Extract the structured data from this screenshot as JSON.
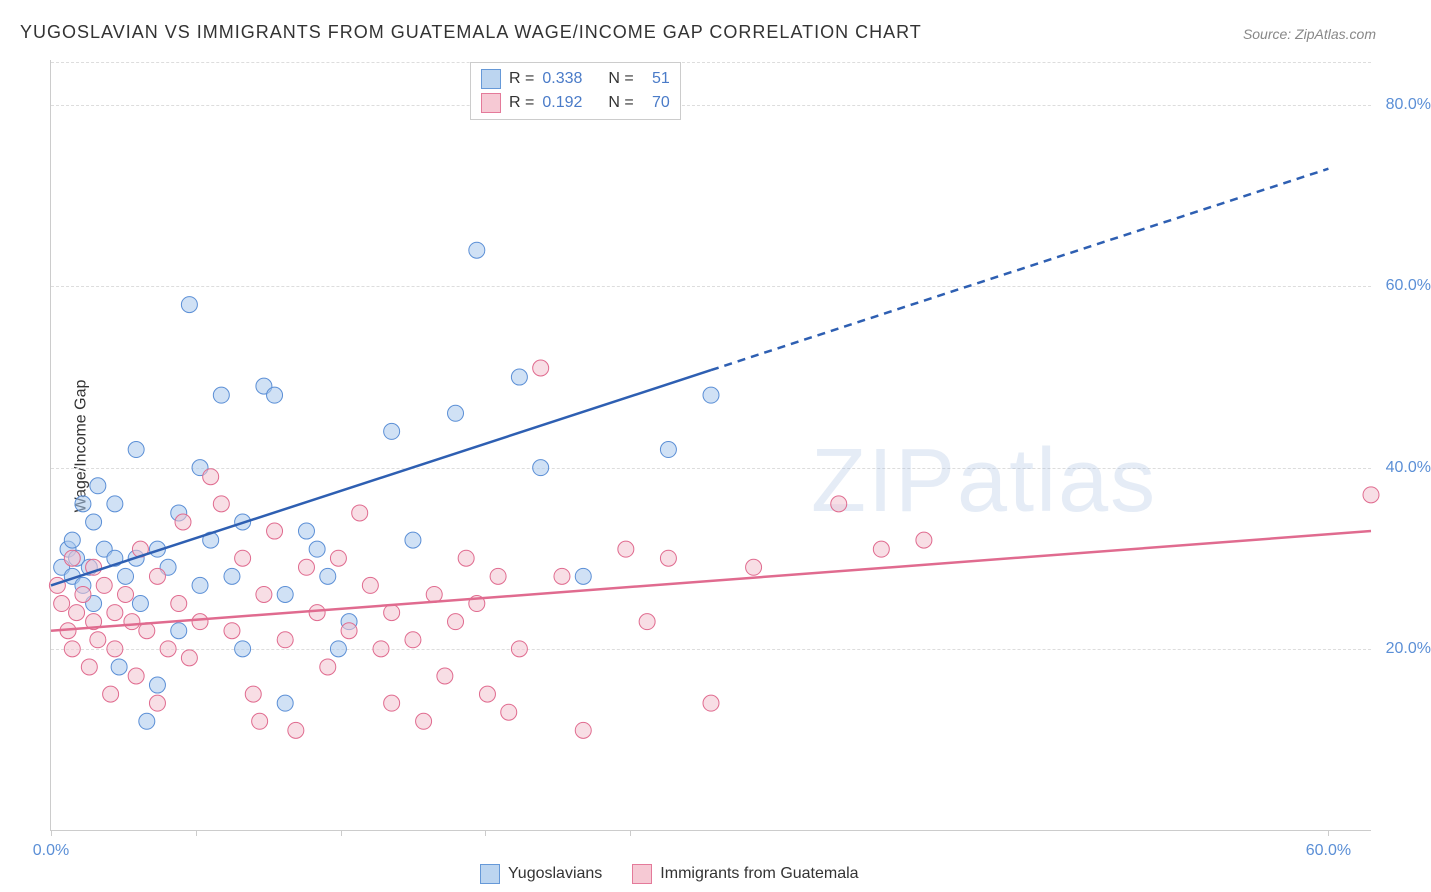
{
  "title": "YUGOSLAVIAN VS IMMIGRANTS FROM GUATEMALA WAGE/INCOME GAP CORRELATION CHART",
  "source": "Source: ZipAtlas.com",
  "y_axis_label": "Wage/Income Gap",
  "watermark": "ZIPatlas",
  "legend_top": {
    "rows": [
      {
        "swatch_fill": "#bcd5f0",
        "swatch_border": "#6699d8",
        "r_label": "R =",
        "r_value": "0.338",
        "n_label": "N =",
        "n_value": "51"
      },
      {
        "swatch_fill": "#f6c9d4",
        "swatch_border": "#e47a9a",
        "r_label": "R =",
        "r_value": "0.192",
        "n_label": "N =",
        "n_value": "70"
      }
    ]
  },
  "legend_bottom": {
    "items": [
      {
        "swatch_fill": "#bcd5f0",
        "swatch_border": "#6699d8",
        "label": "Yugoslavians"
      },
      {
        "swatch_fill": "#f6c9d4",
        "swatch_border": "#e47a9a",
        "label": "Immigrants from Guatemala"
      }
    ]
  },
  "chart": {
    "type": "scatter",
    "background_color": "#ffffff",
    "grid_color": "#dddddd",
    "axis_color": "#cccccc",
    "tick_label_color": "#5b8fd6",
    "tick_fontsize": 16,
    "xlim": [
      0,
      62
    ],
    "ylim": [
      0,
      85
    ],
    "y_ticks": [
      20,
      40,
      60,
      80
    ],
    "y_tick_labels": [
      "20.0%",
      "40.0%",
      "60.0%",
      "80.0%"
    ],
    "x_ticks": [
      0,
      6.8,
      13.6,
      20.4,
      27.2,
      60
    ],
    "x_tick_labels": [
      "0.0%",
      "",
      "",
      "",
      "",
      "60.0%"
    ],
    "marker_radius": 8,
    "marker_opacity": 0.55,
    "series": [
      {
        "name": "Yugoslavians",
        "fill": "#a9c9ec",
        "stroke": "#5b8fd6",
        "trend_color": "#2e5fb2",
        "trend_width": 2.5,
        "trend_solid_to_x": 31,
        "trend": {
          "x1": 0,
          "y1": 27,
          "x2": 60,
          "y2": 73
        },
        "points": [
          [
            0.5,
            29
          ],
          [
            0.8,
            31
          ],
          [
            1,
            28
          ],
          [
            1,
            32
          ],
          [
            1.2,
            30
          ],
          [
            1.5,
            27
          ],
          [
            1.5,
            36
          ],
          [
            1.8,
            29
          ],
          [
            2,
            34
          ],
          [
            2,
            25
          ],
          [
            2.2,
            38
          ],
          [
            2.5,
            31
          ],
          [
            3,
            36
          ],
          [
            3,
            30
          ],
          [
            3.2,
            18
          ],
          [
            3.5,
            28
          ],
          [
            4,
            42
          ],
          [
            4,
            30
          ],
          [
            4.2,
            25
          ],
          [
            4.5,
            12
          ],
          [
            5,
            31
          ],
          [
            5,
            16
          ],
          [
            5.5,
            29
          ],
          [
            6,
            35
          ],
          [
            6,
            22
          ],
          [
            6.5,
            58
          ],
          [
            7,
            40
          ],
          [
            7,
            27
          ],
          [
            7.5,
            32
          ],
          [
            8,
            48
          ],
          [
            8.5,
            28
          ],
          [
            9,
            34
          ],
          [
            9,
            20
          ],
          [
            10,
            49
          ],
          [
            10.5,
            48
          ],
          [
            11,
            26
          ],
          [
            11,
            14
          ],
          [
            12,
            33
          ],
          [
            12.5,
            31
          ],
          [
            13,
            28
          ],
          [
            13.5,
            20
          ],
          [
            14,
            23
          ],
          [
            16,
            44
          ],
          [
            17,
            32
          ],
          [
            19,
            46
          ],
          [
            20,
            64
          ],
          [
            22,
            50
          ],
          [
            23,
            40
          ],
          [
            25,
            28
          ],
          [
            29,
            42
          ],
          [
            31,
            48
          ]
        ]
      },
      {
        "name": "Immigrants from Guatemala",
        "fill": "#f3c2cf",
        "stroke": "#e06b8f",
        "trend_color": "#e06b8f",
        "trend_width": 2.5,
        "trend_solid_to_x": 62,
        "trend": {
          "x1": 0,
          "y1": 22,
          "x2": 62,
          "y2": 33
        },
        "points": [
          [
            0.3,
            27
          ],
          [
            0.5,
            25
          ],
          [
            0.8,
            22
          ],
          [
            1,
            30
          ],
          [
            1,
            20
          ],
          [
            1.2,
            24
          ],
          [
            1.5,
            26
          ],
          [
            1.8,
            18
          ],
          [
            2,
            23
          ],
          [
            2,
            29
          ],
          [
            2.2,
            21
          ],
          [
            2.5,
            27
          ],
          [
            2.8,
            15
          ],
          [
            3,
            24
          ],
          [
            3,
            20
          ],
          [
            3.5,
            26
          ],
          [
            3.8,
            23
          ],
          [
            4,
            17
          ],
          [
            4.2,
            31
          ],
          [
            4.5,
            22
          ],
          [
            5,
            28
          ],
          [
            5,
            14
          ],
          [
            5.5,
            20
          ],
          [
            6,
            25
          ],
          [
            6.2,
            34
          ],
          [
            6.5,
            19
          ],
          [
            7,
            23
          ],
          [
            7.5,
            39
          ],
          [
            8,
            36
          ],
          [
            8.5,
            22
          ],
          [
            9,
            30
          ],
          [
            9.5,
            15
          ],
          [
            9.8,
            12
          ],
          [
            10,
            26
          ],
          [
            10.5,
            33
          ],
          [
            11,
            21
          ],
          [
            11.5,
            11
          ],
          [
            12,
            29
          ],
          [
            12.5,
            24
          ],
          [
            13,
            18
          ],
          [
            13.5,
            30
          ],
          [
            14,
            22
          ],
          [
            14.5,
            35
          ],
          [
            15,
            27
          ],
          [
            15.5,
            20
          ],
          [
            16,
            14
          ],
          [
            16,
            24
          ],
          [
            17,
            21
          ],
          [
            17.5,
            12
          ],
          [
            18,
            26
          ],
          [
            18.5,
            17
          ],
          [
            19,
            23
          ],
          [
            19.5,
            30
          ],
          [
            20,
            25
          ],
          [
            20.5,
            15
          ],
          [
            21,
            28
          ],
          [
            21.5,
            13
          ],
          [
            22,
            20
          ],
          [
            23,
            51
          ],
          [
            24,
            28
          ],
          [
            25,
            11
          ],
          [
            27,
            31
          ],
          [
            28,
            23
          ],
          [
            29,
            30
          ],
          [
            31,
            14
          ],
          [
            33,
            29
          ],
          [
            37,
            36
          ],
          [
            39,
            31
          ],
          [
            41,
            32
          ],
          [
            62,
            37
          ]
        ]
      }
    ]
  }
}
